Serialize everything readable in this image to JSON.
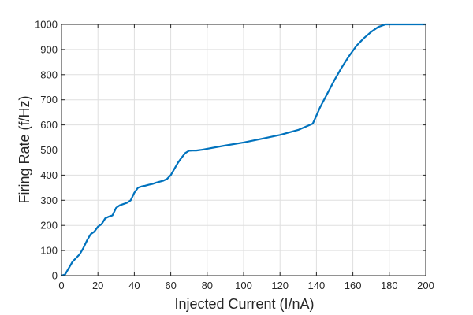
{
  "chart_data": {
    "type": "line",
    "title": "",
    "xlabel": "Injected Current (I/nA)",
    "ylabel": "Firing Rate (f/Hz)",
    "xlim": [
      0,
      200
    ],
    "ylim": [
      0,
      1000
    ],
    "xticks": [
      "0",
      "20",
      "40",
      "60",
      "80",
      "100",
      "120",
      "140",
      "160",
      "180",
      "200"
    ],
    "yticks": [
      "0",
      "100",
      "200",
      "300",
      "400",
      "500",
      "600",
      "700",
      "800",
      "900",
      "1000"
    ],
    "grid": true,
    "line_color": "#0072BD",
    "series": [
      {
        "x": [
          0,
          2,
          4,
          6,
          8,
          10,
          12,
          14,
          16,
          18,
          20,
          22,
          24,
          26,
          28,
          30,
          32,
          34,
          36,
          38,
          40,
          42,
          44,
          46,
          48,
          50,
          52,
          54,
          56,
          58,
          60,
          62,
          64,
          66,
          68,
          70,
          72,
          74,
          76,
          78,
          80,
          90,
          100,
          110,
          120,
          130,
          138,
          142,
          146,
          150,
          154,
          158,
          162,
          166,
          170,
          174,
          178,
          180,
          200
        ],
        "y": [
          0,
          5,
          30,
          55,
          70,
          85,
          110,
          140,
          165,
          175,
          195,
          205,
          228,
          235,
          240,
          270,
          280,
          285,
          290,
          300,
          330,
          350,
          355,
          358,
          362,
          365,
          370,
          374,
          378,
          385,
          400,
          425,
          450,
          470,
          488,
          497,
          498,
          498,
          500,
          502,
          505,
          518,
          530,
          545,
          560,
          580,
          605,
          670,
          725,
          780,
          830,
          875,
          915,
          945,
          970,
          990,
          1000,
          1000,
          1000
        ]
      }
    ]
  }
}
